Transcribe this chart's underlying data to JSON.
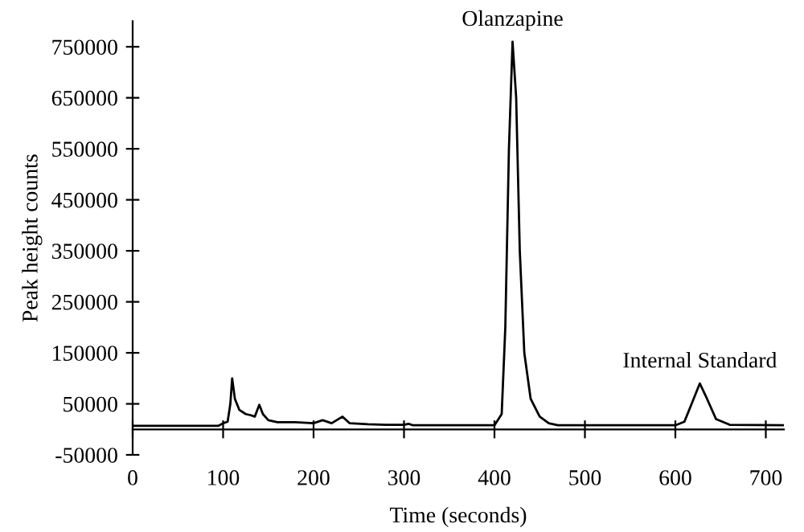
{
  "chart_data": {
    "type": "line",
    "xlabel": "Time (seconds)",
    "ylabel": "Peak height counts",
    "xlim": [
      0,
      720
    ],
    "xticks": [
      0,
      100,
      200,
      300,
      400,
      500,
      600,
      700
    ],
    "ylim": [
      -50000,
      800000
    ],
    "yticks": [
      -50000,
      50000,
      150000,
      250000,
      350000,
      450000,
      550000,
      650000,
      750000
    ],
    "grid": false,
    "series": [
      {
        "color": "#000000",
        "x": [
          0,
          95,
          100,
          105,
          108,
          110,
          113,
          118,
          125,
          130,
          135,
          140,
          144,
          150,
          160,
          180,
          200,
          210,
          220,
          232,
          240,
          260,
          280,
          300,
          305,
          310,
          400,
          408,
          412,
          416,
          420,
          424,
          428,
          433,
          440,
          450,
          460,
          470,
          600,
          610,
          618,
          627,
          635,
          645,
          660,
          720
        ],
        "values": [
          7000,
          7000,
          12000,
          15000,
          50000,
          100000,
          60000,
          38000,
          30000,
          28000,
          25000,
          48000,
          30000,
          18000,
          14000,
          14000,
          12000,
          18000,
          12000,
          25000,
          12000,
          10000,
          9000,
          9000,
          11000,
          8000,
          8000,
          30000,
          200000,
          550000,
          760000,
          650000,
          350000,
          150000,
          60000,
          25000,
          12000,
          8000,
          8000,
          15000,
          50000,
          90000,
          60000,
          20000,
          9000,
          8000
        ]
      }
    ],
    "annotations": [
      {
        "text": "Olanzapine",
        "x": 420,
        "y": 760000
      },
      {
        "text": "Internal Standard",
        "x": 627,
        "y": 90000
      }
    ]
  }
}
